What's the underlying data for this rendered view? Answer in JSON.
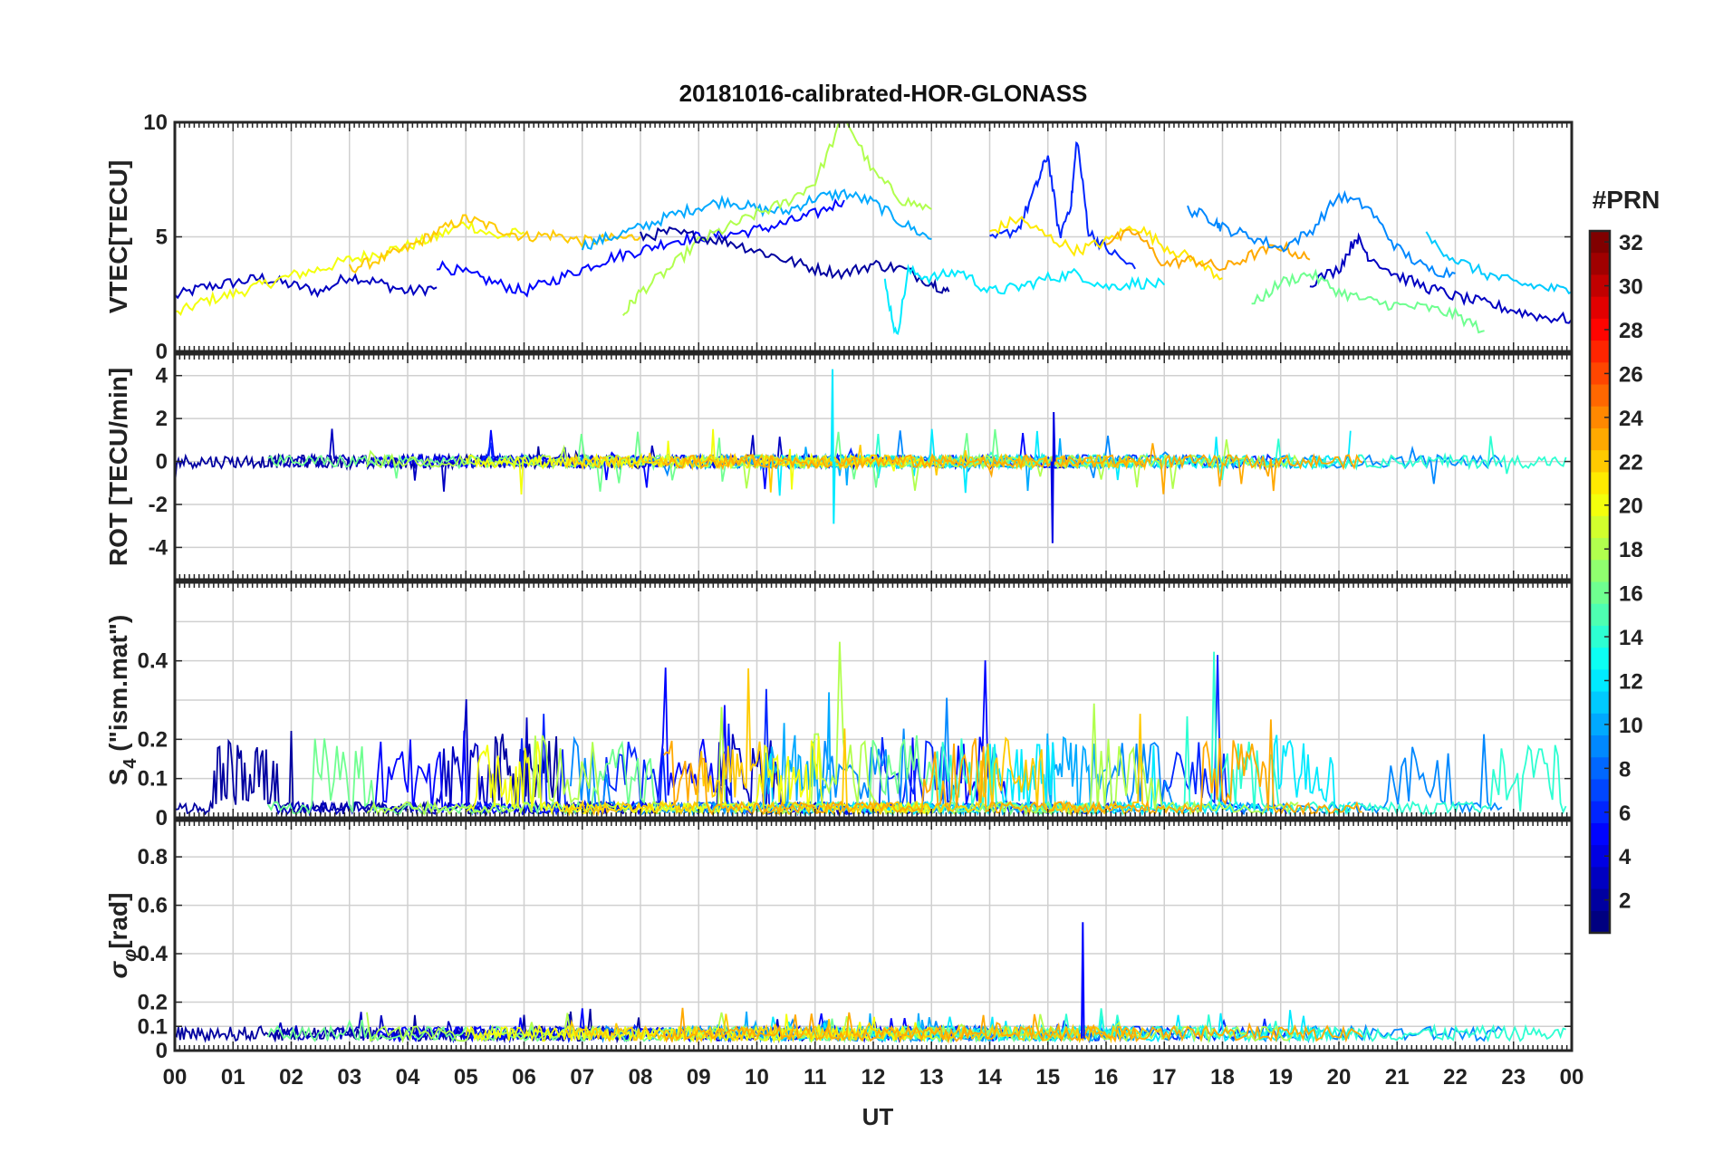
{
  "title": "20181016-calibrated-HOR-GLONASS",
  "xlabel": "UT",
  "x_ticks": [
    "00",
    "01",
    "02",
    "03",
    "04",
    "05",
    "06",
    "07",
    "08",
    "09",
    "10",
    "11",
    "12",
    "13",
    "14",
    "15",
    "16",
    "17",
    "18",
    "19",
    "20",
    "21",
    "22",
    "23",
    "00"
  ],
  "colorbar": {
    "title": "#PRN",
    "range": [
      1,
      32
    ],
    "ticks": [
      "2",
      "4",
      "6",
      "8",
      "10",
      "12",
      "14",
      "16",
      "18",
      "20",
      "22",
      "24",
      "26",
      "28",
      "30",
      "32"
    ],
    "colormap": "jet"
  },
  "chart_data": [
    {
      "type": "line",
      "ylabel": "VTEC[TECU]",
      "ylim": [
        0,
        10
      ],
      "yticks": [
        "0",
        "5",
        "10"
      ],
      "xlim": [
        0,
        24
      ],
      "grid": true,
      "series_summary": "Multiple satellite tracks colored by PRN; values mostly 2-7 TECU with peaks near 9-10 TECU around 11.5 UT and 15-15.5 UT",
      "series": [
        {
          "prn": 3,
          "x": [
            0,
            0.5,
            1,
            1.5,
            2,
            2.5,
            3,
            3.5,
            4,
            4.5
          ],
          "y": [
            2.4,
            2.8,
            3.0,
            3.2,
            2.9,
            2.6,
            3.3,
            3.0,
            2.6,
            2.8
          ]
        },
        {
          "prn": 20,
          "x": [
            0,
            0.5,
            1,
            1.5,
            2,
            2.5,
            3,
            3.5,
            4,
            4.5,
            5,
            5.5,
            6
          ],
          "y": [
            1.6,
            2.2,
            2.5,
            2.9,
            3.3,
            3.6,
            4.0,
            4.3,
            4.6,
            5.0,
            5.6,
            5.0,
            5.2
          ]
        },
        {
          "prn": 22,
          "x": [
            3,
            3.5,
            4,
            4.5,
            5,
            5.5,
            6,
            6.5,
            7,
            7.5,
            8
          ],
          "y": [
            3.6,
            4.0,
            4.5,
            5.2,
            5.8,
            5.4,
            5.0,
            5.1,
            4.8,
            4.9,
            5.0
          ]
        },
        {
          "prn": 5,
          "x": [
            4.5,
            5,
            5.5,
            6,
            6.5,
            7,
            7.5,
            8,
            8.5,
            9,
            9.5,
            10,
            10.5,
            11,
            11.5
          ],
          "y": [
            3.8,
            3.4,
            3.0,
            2.6,
            3.1,
            3.6,
            4.1,
            4.4,
            4.8,
            5.0,
            5.1,
            5.3,
            5.6,
            6.0,
            6.6
          ]
        },
        {
          "prn": 10,
          "x": [
            7,
            7.5,
            8,
            8.5,
            9,
            9.5,
            10,
            10.5,
            11,
            11.5,
            12,
            12.5,
            13
          ],
          "y": [
            4.6,
            5.0,
            5.4,
            5.9,
            6.3,
            6.6,
            6.2,
            6.1,
            6.7,
            6.9,
            6.5,
            5.6,
            4.9
          ]
        },
        {
          "prn": 18,
          "x": [
            7.7,
            8,
            8.5,
            9,
            9.5,
            10,
            10.5,
            11,
            11.5,
            12,
            12.5,
            13
          ],
          "y": [
            1.6,
            2.6,
            3.6,
            4.8,
            5.4,
            6.0,
            6.5,
            7.4,
            10.3,
            7.8,
            6.6,
            6.2
          ]
        },
        {
          "prn": 2,
          "x": [
            8,
            8.5,
            9,
            9.5,
            10,
            10.5,
            11,
            11.5,
            12,
            12.5,
            13,
            13.3
          ],
          "y": [
            5.0,
            5.2,
            5.0,
            4.8,
            4.4,
            4.0,
            3.6,
            3.4,
            3.8,
            3.6,
            3.0,
            2.6
          ]
        },
        {
          "prn": 12,
          "x": [
            12.2,
            12.4,
            12.6,
            13,
            13.5,
            14,
            14.5,
            15,
            15.5,
            16,
            16.5,
            17
          ],
          "y": [
            3.0,
            0.6,
            3.5,
            3.2,
            3.5,
            2.6,
            2.8,
            3.2,
            3.4,
            2.8,
            3.0,
            2.9
          ]
        },
        {
          "prn": 6,
          "x": [
            14,
            14.5,
            14.8,
            15,
            15.2,
            15.4,
            15.5,
            15.7,
            16,
            16.5
          ],
          "y": [
            4.8,
            5.4,
            7.2,
            8.6,
            5.0,
            6.5,
            9.3,
            5.2,
            4.5,
            3.6
          ]
        },
        {
          "prn": 21,
          "x": [
            14,
            14.5,
            15,
            15.5,
            16,
            16.5,
            17,
            17.5,
            18
          ],
          "y": [
            5.2,
            5.8,
            5.0,
            4.4,
            4.8,
            5.5,
            4.6,
            4.0,
            3.2
          ]
        },
        {
          "prn": 23,
          "x": [
            16,
            16.5,
            17,
            17.5,
            18,
            18.5,
            19,
            19.5
          ],
          "y": [
            4.8,
            5.2,
            3.8,
            4.0,
            3.6,
            4.2,
            4.6,
            4.0
          ]
        },
        {
          "prn": 9,
          "x": [
            17.4,
            17.8,
            18,
            18.5,
            19,
            19.5,
            20,
            20.5,
            21,
            21.5,
            22
          ],
          "y": [
            6.2,
            5.8,
            5.4,
            5.0,
            4.5,
            5.2,
            6.8,
            6.3,
            4.5,
            3.6,
            3.4
          ]
        },
        {
          "prn": 3,
          "x": [
            19.5,
            20,
            20.3,
            20.5,
            21,
            21.5,
            22,
            22.5,
            23,
            23.5,
            24
          ],
          "y": [
            3.0,
            3.6,
            5.0,
            4.2,
            3.3,
            2.8,
            2.4,
            2.1,
            1.8,
            1.5,
            1.4
          ]
        },
        {
          "prn": 16,
          "x": [
            18.5,
            19,
            19.5,
            20,
            20.5,
            21,
            21.5,
            22,
            22.5
          ],
          "y": [
            2.0,
            3.0,
            3.4,
            2.6,
            2.2,
            2.0,
            1.9,
            1.6,
            0.9
          ]
        },
        {
          "prn": 11,
          "x": [
            21.5,
            22,
            22.5,
            23,
            23.5,
            24
          ],
          "y": [
            5.0,
            4.0,
            3.4,
            3.0,
            2.8,
            2.6
          ]
        }
      ]
    },
    {
      "type": "line",
      "ylabel": "ROT [TECU/min]",
      "ylim": [
        -5.5,
        5
      ],
      "yticks": [
        "-4",
        "-2",
        "0",
        "2",
        "4"
      ],
      "xlim": [
        0,
        24
      ],
      "grid": true,
      "series_summary": "Rate of TEC for all PRNs; mostly within ±1 TECU/min, spikes to ~4.3 near 11.3 UT and ~-3.8 near 15.1 UT"
    },
    {
      "type": "line",
      "ylabel": "S4 (\"ism.mat\")",
      "ylabel_main": "S",
      "ylabel_sub": "4",
      "ylabel_rest": " (\"ism.mat\")",
      "ylim": [
        0,
        0.6
      ],
      "yticks": [
        "0",
        "0.1",
        "0.2",
        "0.4"
      ],
      "xlim": [
        0,
        24
      ],
      "grid": true,
      "series_summary": "S4 scintillation index per PRN; baseline below 0.05 with bursts 0.2-0.4 throughout the day"
    },
    {
      "type": "line",
      "ylabel": "σφ [rad]",
      "ylabel_main": "σ",
      "ylabel_sub": "φ",
      "ylabel_rest": "[rad]",
      "ylim": [
        0,
        0.95
      ],
      "yticks": [
        "0",
        "0.1",
        "0.2",
        "0.4",
        "0.6",
        "0.8"
      ],
      "xlim": [
        0,
        24
      ],
      "grid": true,
      "series_summary": "Phase scintillation index; mostly 0.03-0.15 rad, isolated spike ~0.53 at ~15.6 UT"
    }
  ]
}
